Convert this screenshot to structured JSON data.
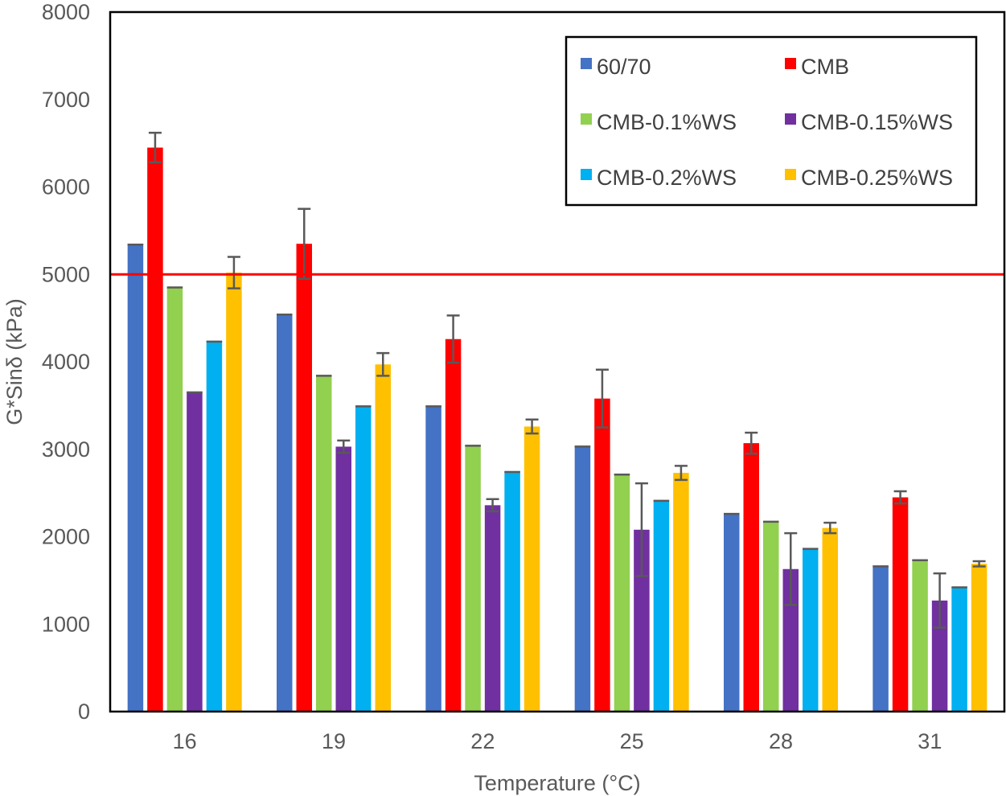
{
  "chart_data": {
    "type": "bar",
    "title": "",
    "xlabel": "Temperature (°C)",
    "ylabel": "G*Sinδ (kPa)",
    "ylim": [
      0,
      8000
    ],
    "yticks": [
      0,
      1000,
      2000,
      3000,
      4000,
      5000,
      6000,
      7000,
      8000
    ],
    "categories": [
      "16",
      "19",
      "22",
      "25",
      "28",
      "31"
    ],
    "legend_position": "top-right",
    "grid": false,
    "threshold_line": {
      "value": 5000,
      "color": "#ff0000"
    },
    "series": [
      {
        "name": "60/70",
        "color": "#4472c4",
        "values": [
          5350,
          4550,
          3500,
          3040,
          2270,
          1670
        ],
        "errors": [
          0,
          0,
          0,
          0,
          0,
          0
        ]
      },
      {
        "name": "CMB",
        "color": "#ff0000",
        "values": [
          6450,
          5350,
          4260,
          3580,
          3070,
          2450
        ],
        "errors": [
          170,
          400,
          270,
          330,
          120,
          70
        ]
      },
      {
        "name": "CMB-0.1%WS",
        "color": "#92d050",
        "values": [
          4860,
          3850,
          3050,
          2720,
          2180,
          1740
        ],
        "errors": [
          0,
          0,
          0,
          0,
          0,
          0
        ]
      },
      {
        "name": "CMB-0.15%WS",
        "color": "#7030a0",
        "values": [
          3660,
          3030,
          2360,
          2080,
          1630,
          1270
        ],
        "errors": [
          0,
          70,
          70,
          530,
          410,
          310
        ]
      },
      {
        "name": "CMB-0.2%WS",
        "color": "#00b0f0",
        "values": [
          4240,
          3500,
          2750,
          2420,
          1870,
          1430
        ],
        "errors": [
          0,
          0,
          0,
          0,
          0,
          0
        ]
      },
      {
        "name": "CMB-0.25%WS",
        "color": "#ffc000",
        "values": [
          5020,
          3970,
          3260,
          2730,
          2100,
          1690
        ],
        "errors": [
          180,
          130,
          80,
          80,
          60,
          30
        ]
      }
    ]
  }
}
